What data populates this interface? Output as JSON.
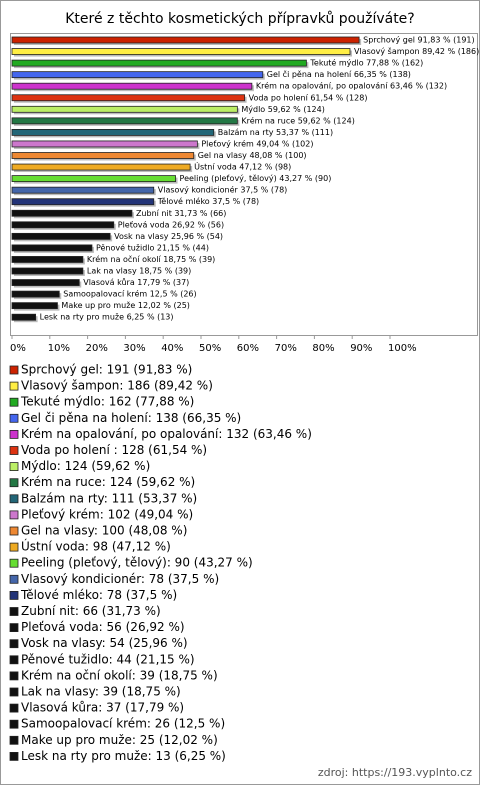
{
  "chart_data": {
    "type": "bar",
    "orientation": "horizontal",
    "title": "Které z těchto kosmetických přípravků používáte?",
    "categories": [
      "Sprchový gel",
      "Vlasový šampon",
      "Tekuté mýdlo",
      "Gel či pěna na holení",
      "Krém na opalování, po opalování",
      "Voda po holení",
      "Mýdlo",
      "Krém na ruce",
      "Balzám na rty",
      "Pleťový krém",
      "Gel na vlasy",
      "Ústní voda",
      "Peeling (pleťový, tělový)",
      "Vlasový kondicionér",
      "Tělové mléko",
      "Zubní nit",
      "Pleťová voda",
      "Vosk na vlasy",
      "Pěnové tužidlo",
      "Krém na oční okolí",
      "Lak na vlasy",
      "Vlasová kůra",
      "Samoopalovací krém",
      "Make up pro muže",
      "Lesk na rty pro muže"
    ],
    "values": [
      91.83,
      89.42,
      77.88,
      66.35,
      63.46,
      61.54,
      59.62,
      59.62,
      53.37,
      49.04,
      48.08,
      47.12,
      43.27,
      37.5,
      37.5,
      31.73,
      26.92,
      25.96,
      21.15,
      18.75,
      18.75,
      17.79,
      12.5,
      12.02,
      6.25
    ],
    "value_labels": [
      "Sprchový gel 91,83 % (191)",
      "Vlasový šampon 89,42 % (186)",
      "Tekuté mýdlo 77,88 % (162)",
      "Gel či pěna na holení 66,35 % (138)",
      "Krém na opalování, po opalování 63,46 % (132)",
      "Voda po holení 61,54 % (128)",
      "Mýdlo 59,62 % (124)",
      "Krém na ruce 59,62 % (124)",
      "Balzám na rty 53,37 % (111)",
      "Pleťový krém 49,04 % (102)",
      "Gel na vlasy 48,08 % (100)",
      "Ústní voda 47,12 % (98)",
      "Peeling (pleťový, tělový) 43,27 % (90)",
      "Vlasový kondicionér 37,5 % (78)",
      "Tělové mléko 37,5 % (78)",
      "Zubní nit 31,73 % (66)",
      "Pleťová voda 26,92 % (56)",
      "Vosk na vlasy 25,96 % (54)",
      "Pěnové tužidlo 21,15 % (44)",
      "Krém na oční okolí 18,75 % (39)",
      "Lak na vlasy 18,75 % (39)",
      "Vlasová kůra 17,79 % (37)",
      "Samoopalovací krém 12,5 % (26)",
      "Make up pro muže 12,02 % (25)",
      "Lesk na rty pro muže 6,25 % (13)"
    ],
    "legend_labels": [
      "Sprchový gel: 191 (91,83 %)",
      "Vlasový šampon: 186 (89,42 %)",
      "Tekuté mýdlo: 162 (77,88 %)",
      "Gel či pěna na holení: 138 (66,35 %)",
      "Krém na opalování, po opalování: 132 (63,46 %)",
      "Voda po holení : 128 (61,54 %)",
      "Mýdlo: 124 (59,62 %)",
      "Krém na ruce: 124 (59,62 %)",
      "Balzám na rty: 111 (53,37 %)",
      "Pleťový krém: 102 (49,04 %)",
      "Gel na vlasy: 100 (48,08 %)",
      "Ústní voda: 98 (47,12 %)",
      "Peeling (pleťový, tělový): 90 (43,27 %)",
      "Vlasový kondicionér: 78 (37,5 %)",
      "Tělové mléko: 78 (37,5 %)",
      "Zubní nit: 66 (31,73 %)",
      "Pleťová voda: 56 (26,92 %)",
      "Vosk na vlasy: 54 (25,96 %)",
      "Pěnové tužidlo: 44 (21,15 %)",
      "Krém na oční okolí: 39 (18,75 %)",
      "Lak na vlasy: 39 (18,75 %)",
      "Vlasová kůra: 37 (17,79 %)",
      "Samoopalovací krém: 26 (12,5 %)",
      "Make up pro muže: 25 (12,02 %)",
      "Lesk na rty pro muže: 13 (6,25 %)"
    ],
    "colors": [
      "#cc2200",
      "#ffee44",
      "#22aa22",
      "#4466ee",
      "#cc33cc",
      "#dd3311",
      "#bbee66",
      "#227744",
      "#226677",
      "#cc77cc",
      "#ee8833",
      "#eeaa22",
      "#66dd33",
      "#4466aa",
      "#223377",
      "#111111",
      "#111111",
      "#111111",
      "#111111",
      "#111111",
      "#111111",
      "#111111",
      "#111111",
      "#111111",
      "#111111"
    ],
    "xlim": [
      0,
      100
    ],
    "xticks": [
      {
        "value": 0,
        "label": "0%"
      },
      {
        "value": 10,
        "label": "10%"
      },
      {
        "value": 20,
        "label": "20%"
      },
      {
        "value": 30,
        "label": "30%"
      },
      {
        "value": 40,
        "label": "40%"
      },
      {
        "value": 50,
        "label": "50%"
      },
      {
        "value": 60,
        "label": "60%"
      },
      {
        "value": 70,
        "label": "70%"
      },
      {
        "value": 80,
        "label": "80%"
      },
      {
        "value": 90,
        "label": "90%"
      },
      {
        "value": 100,
        "label": "100%"
      }
    ],
    "source": "zdroj: https://193.vyplnto.cz"
  }
}
